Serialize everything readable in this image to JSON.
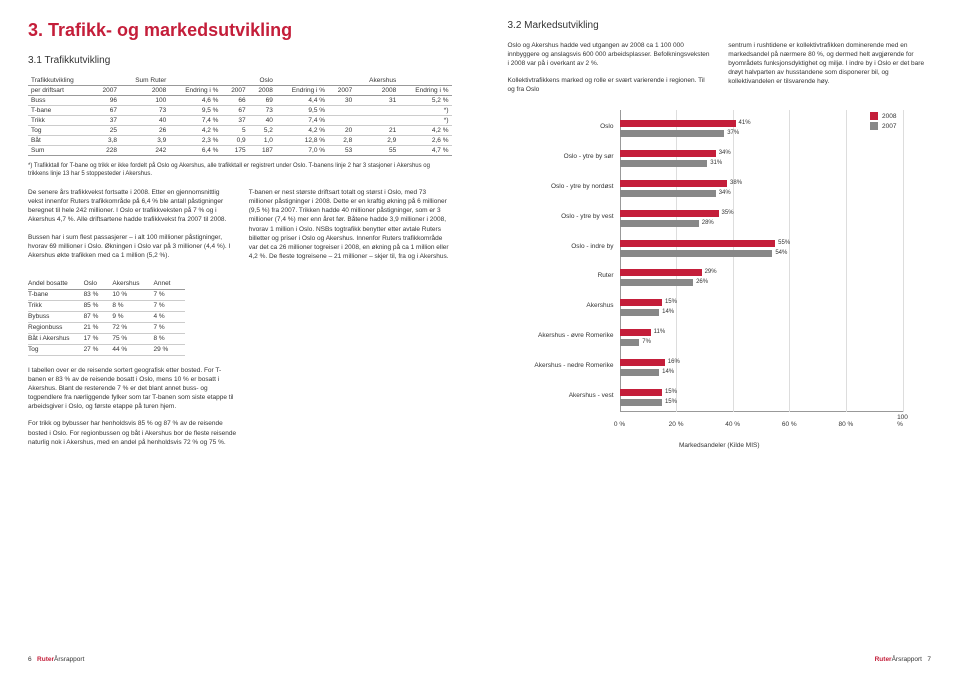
{
  "page_left": {
    "title": "3. Trafikk- og markedsutvikling",
    "subtitle": "3.1 Trafikkutvikling",
    "table1": {
      "head": {
        "r1": [
          "Trafikkutvikling",
          "",
          "Sum Ruter",
          "",
          "",
          "Oslo",
          "",
          "",
          "Akershus",
          ""
        ],
        "r2": [
          "per driftsart",
          "2007",
          "2008",
          "Endring i %",
          "2007",
          "2008",
          "Endring i %",
          "2007",
          "2008",
          "Endring i %"
        ]
      },
      "rows": [
        [
          "Buss",
          "96",
          "100",
          "4,6 %",
          "66",
          "69",
          "4,4 %",
          "30",
          "31",
          "5,2 %"
        ],
        [
          "T-bane",
          "67",
          "73",
          "9,5 %",
          "67",
          "73",
          "9,5 %",
          "",
          "",
          "*)"
        ],
        [
          "Trikk",
          "37",
          "40",
          "7,4 %",
          "37",
          "40",
          "7,4 %",
          "",
          "",
          "*)"
        ],
        [
          "Tog",
          "25",
          "26",
          "4,2 %",
          "5",
          "5,2",
          "4,2 %",
          "20",
          "21",
          "4,2 %"
        ],
        [
          "Båt",
          "3,8",
          "3,9",
          "2,3 %",
          "0,9",
          "1,0",
          "12,8 %",
          "2,8",
          "2,9",
          "2,6 %"
        ],
        [
          "Sum",
          "228",
          "242",
          "6,4 %",
          "175",
          "187",
          "7,0 %",
          "53",
          "55",
          "4,7 %"
        ]
      ]
    },
    "footnote1": "*) Trafikktall for T-bane og trikk er ikke fordelt på Oslo og Akershus, alle trafikktall er registrert under Oslo. T-banens linje 2 har 3 stasjoner i Akershus og trikkens linje 13 har 5 stoppesteder i Akershus.",
    "para1a": "De senere års trafikkvekst fortsatte i 2008. Etter en gjennomsnittlig vekst innenfor Ruters trafikkområde på 6,4 % ble antall påstigninger beregnet til hele 242 millioner. I Oslo er trafikkveksten på 7 % og i Akershus 4,7 %. Alle driftsartene hadde trafikkvekst fra 2007 til 2008.",
    "para1b": "Bussen har i sum flest passasjerer – i alt 100 millioner påstigninger, hvorav 69 millioner i Oslo. Økningen i Oslo var på 3 millioner (4,4 %). I Akershus økte trafikken med ca 1 million (5,2 %).",
    "para1c": "T-banen er nest største driftsart totalt og størst i Oslo, med 73 millioner påstigninger i 2008. Dette er en kraftig økning på 6 millioner (9,5 %) fra 2007. Trikken hadde 40 millioner påstigninger, som er 3 millioner (7,4 %) mer enn året før. Båtene hadde 3,9 millioner i 2008, hvorav 1 million i Oslo. NSBs togtrafikk benytter etter avtale Ruters billetter og priser i Oslo og Akershus. Innenfor Ruters trafikkområde var det ca 26 millioner togreiser i 2008, en økning på ca 1 million eller 4,2 %. De fleste togreisene – 21 millioner – skjer til, fra og i Akershus.",
    "table2": {
      "head": [
        "Andel bosatte",
        "Oslo",
        "Akershus",
        "Annet"
      ],
      "rows": [
        [
          "T-bane",
          "83 %",
          "10 %",
          "7 %"
        ],
        [
          "Trikk",
          "85 %",
          "8 %",
          "7 %"
        ],
        [
          "Bybuss",
          "87 %",
          "9 %",
          "4 %"
        ],
        [
          "Regionbuss",
          "21 %",
          "72 %",
          "7 %"
        ],
        [
          "Båt i Akershus",
          "17 %",
          "75 %",
          "8 %"
        ],
        [
          "Tog",
          "27 %",
          "44 %",
          "29 %"
        ]
      ]
    },
    "para2a": "I tabellen over er de reisende sortert geografisk etter bosted. For T-banen er 83 % av de reisende bosatt i Oslo, mens 10 % er bosatt i Akershus. Blant de resterende 7 % er det blant annet buss- og togpendlere fra nærliggende fylker som tar T-banen som siste etappe til arbeidsgiver i Oslo, og første etappe på turen hjem.",
    "para2b": "For trikk og bybusser har henholdsvis 85 % og 87 % av de reisende bosted i Oslo. For regionbussen og båt i Akershus bor de fleste reisende naturlig nok i Akershus, med en andel på henholdsvis 72 % og 75 %.",
    "footer_page": "6",
    "footer_brand": "Ruter",
    "footer_label": "Årsrapport"
  },
  "page_right": {
    "subtitle": "3.2 Markedsutvikling",
    "para_a": "Oslo og Akershus hadde ved utgangen av 2008 ca 1 100 000 innbyggere og anslagsvis 600 000 arbeidsplasser. Befolkningsveksten i 2008 var på i overkant av 2 %.",
    "para_b": "Kollektivtrafikkens marked og rolle er svært varierende i regionen. Til og fra Oslo",
    "para_c": "sentrum i rushtidene er kollektivtrafikken dominerende med en markedsandel på nærmere 80 %, og dermed helt avgjørende for byområdets funksjonsdyktighet og miljø. I indre by i Oslo er det bare drøyt halvparten av husstandene som disponerer bil, og kollektivandelen er tilsvarende høy.",
    "chart": {
      "type": "bar-horizontal-grouped",
      "xlim": [
        0,
        100
      ],
      "xtick_step": 20,
      "xticks": [
        "0 %",
        "20 %",
        "40 %",
        "60 %",
        "80 %",
        "100 %"
      ],
      "colors": {
        "2008": "#c41e3a",
        "2007": "#888888"
      },
      "background": "#ffffff",
      "legend": [
        "2008",
        "2007"
      ],
      "categories": [
        {
          "label": "Oslo",
          "v2008": 41,
          "v2007": 37
        },
        {
          "label": "Oslo - ytre by sør",
          "v2008": 34,
          "v2007": 31
        },
        {
          "label": "Oslo - ytre by nordøst",
          "v2008": 38,
          "v2007": 34
        },
        {
          "label": "Oslo - ytre by vest",
          "v2008": 35,
          "v2007": 28
        },
        {
          "label": "Oslo - indre by",
          "v2008": 55,
          "v2007": 54
        },
        {
          "label": "Ruter",
          "v2008": 29,
          "v2007": 26
        },
        {
          "label": "Akershus",
          "v2008": 15,
          "v2007": 14
        },
        {
          "label": "Akershus - øvre Romerike",
          "v2008": 11,
          "v2007": 7
        },
        {
          "label": "Akershus - nedre Romerike",
          "v2008": 16,
          "v2007": 14
        },
        {
          "label": "Akershus - vest",
          "v2008": 15,
          "v2007": 15
        }
      ],
      "caption": "Markedsandeler (Kilde MIS)"
    },
    "footer_page": "7",
    "footer_brand": "Ruter",
    "footer_label": "Årsrapport"
  }
}
